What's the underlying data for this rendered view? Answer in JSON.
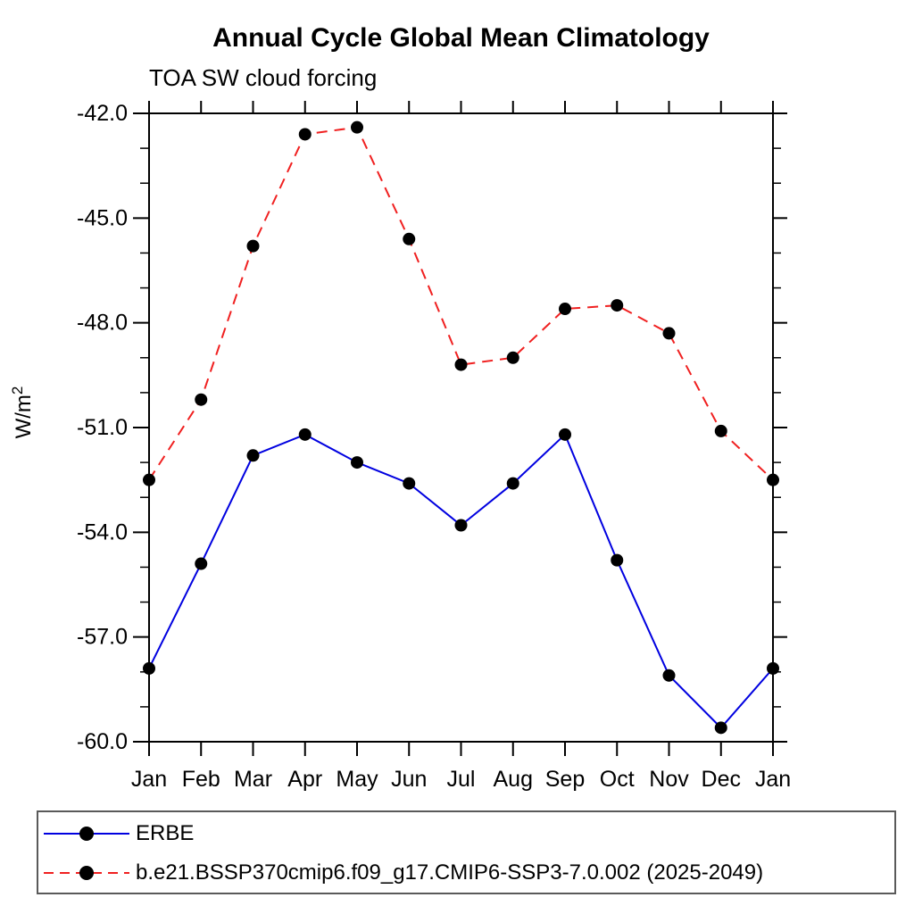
{
  "chart_data": {
    "type": "line",
    "title": "Annual Cycle Global Mean Climatology",
    "subtitle": "TOA SW cloud forcing",
    "ylabel": {
      "base": "W/m",
      "sup": "2"
    },
    "x_categories": [
      "Jan",
      "Feb",
      "Mar",
      "Apr",
      "May",
      "Jun",
      "Jul",
      "Aug",
      "Sep",
      "Oct",
      "Nov",
      "Dec",
      "Jan"
    ],
    "ylim": [
      -60.0,
      -42.0
    ],
    "ytick_labels": [
      "-42.0",
      "-45.0",
      "-48.0",
      "-51.0",
      "-54.0",
      "-57.0",
      "-60.0"
    ],
    "ytick_minor_step": 1.0,
    "grid": "off",
    "legend_position": "bottom",
    "marker": {
      "shape": "filled-circle",
      "color": "#000000"
    },
    "series": [
      {
        "name": "ERBE",
        "color": "#0000e0",
        "dash": "solid",
        "values": [
          -57.9,
          -54.9,
          -51.8,
          -51.2,
          -52.0,
          -52.6,
          -53.8,
          -52.6,
          -51.2,
          -54.8,
          -58.1,
          -59.6,
          -57.9
        ]
      },
      {
        "name": "b.e21.BSSP370cmip6.f09_g17.CMIP6-SSP3-7.0.002 (2025-2049)",
        "color": "#f02020",
        "dash": "dashed",
        "values": [
          -52.5,
          -50.2,
          -45.8,
          -42.6,
          -42.4,
          -45.6,
          -49.2,
          -49.0,
          -47.6,
          -47.5,
          -48.3,
          -51.1,
          -52.5
        ]
      }
    ]
  }
}
